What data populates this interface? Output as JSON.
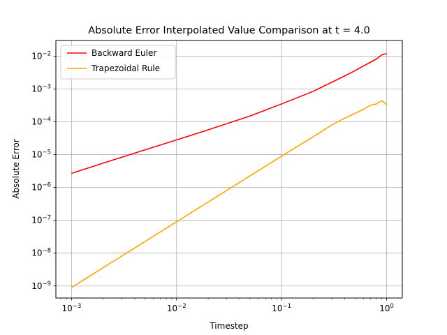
{
  "chart_data": {
    "type": "line",
    "title": "Absolute Error Interpolated Value Comparison at t = 4.0",
    "xlabel": "Timestep",
    "ylabel": "Absolute Error",
    "xscale": "log",
    "yscale": "log",
    "xlim": [
      0.00071,
      1.41
    ],
    "ylim": [
      4.3e-10,
      0.03
    ],
    "grid": true,
    "legend": "top-left",
    "x_ticks": [
      {
        "base": "10",
        "exp": "−3",
        "value": 0.001
      },
      {
        "base": "10",
        "exp": "−2",
        "value": 0.01
      },
      {
        "base": "10",
        "exp": "−1",
        "value": 0.1
      },
      {
        "base": "10",
        "exp": "0",
        "value": 1
      }
    ],
    "y_ticks": [
      {
        "base": "10",
        "exp": "−9",
        "value": 1e-09
      },
      {
        "base": "10",
        "exp": "−8",
        "value": 1e-08
      },
      {
        "base": "10",
        "exp": "−7",
        "value": 1e-07
      },
      {
        "base": "10",
        "exp": "−6",
        "value": 1e-06
      },
      {
        "base": "10",
        "exp": "−5",
        "value": 1e-05
      },
      {
        "base": "10",
        "exp": "−4",
        "value": 0.0001
      },
      {
        "base": "10",
        "exp": "−3",
        "value": 0.001
      },
      {
        "base": "10",
        "exp": "−2",
        "value": 0.01
      }
    ],
    "series": [
      {
        "name": "Backward Euler",
        "color": "#ff0000",
        "x": [
          0.001,
          0.002,
          0.005,
          0.01,
          0.02,
          0.05,
          0.1,
          0.2,
          0.3,
          0.4,
          0.5,
          0.6,
          0.7,
          0.8,
          0.9,
          1.0
        ],
        "y": [
          2.7e-06,
          5.5e-06,
          1.4e-05,
          2.8e-05,
          5.7e-05,
          0.00015,
          0.00035,
          0.00085,
          0.0016,
          0.0025,
          0.0036,
          0.005,
          0.0065,
          0.0082,
          0.011,
          0.012
        ]
      },
      {
        "name": "Trapezoidal Rule",
        "color": "#ffa500",
        "x": [
          0.001,
          0.01,
          0.1,
          0.2,
          0.3,
          0.4,
          0.5,
          0.6,
          0.7,
          0.8,
          0.9,
          1.0
        ],
        "y": [
          9e-10,
          9e-08,
          9e-06,
          3.5e-05,
          8e-05,
          0.00013,
          0.00018,
          0.00024,
          0.00032,
          0.00035,
          0.00044,
          0.00033
        ]
      }
    ]
  }
}
